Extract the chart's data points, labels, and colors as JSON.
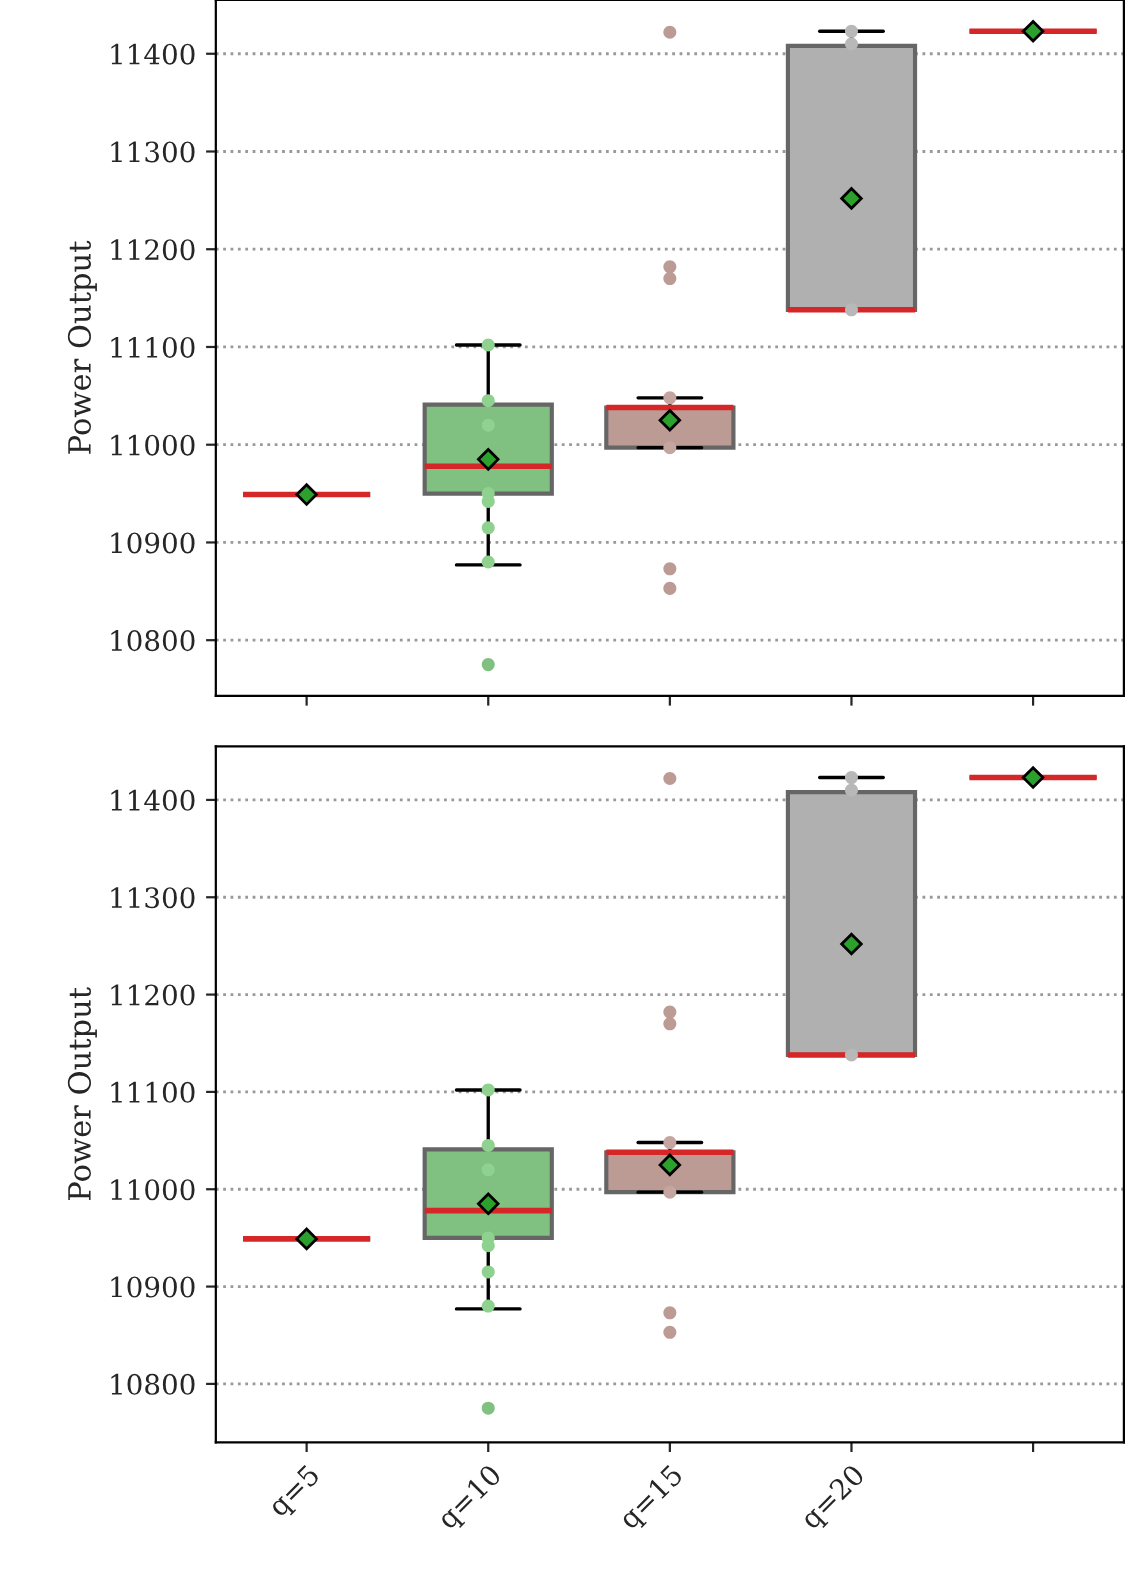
{
  "chart_data": [
    {
      "type": "box",
      "categories": [
        "q=5",
        "q=10",
        "q=15",
        "q=20",
        null
      ],
      "ylabel": "Power Output",
      "ylim": [
        10743,
        11455
      ],
      "yticks": [
        10800,
        10900,
        11000,
        11100,
        11200,
        11300,
        11400
      ],
      "grid": "y",
      "tick_labels": "y",
      "colors": [
        "#1f77b4",
        "#80c080",
        "#bc9b95",
        "#b0b0b0",
        "#d62728"
      ],
      "boxes": [
        {
          "low": 10949,
          "q1": 10949,
          "median": 10949,
          "q3": 10949,
          "high": 10949,
          "mean": 10949
        },
        {
          "low": 10877,
          "q1": 10950,
          "median": 10978,
          "q3": 11041,
          "high": 11102,
          "mean": 10985,
          "outliers": [
            10775
          ]
        },
        {
          "low": 10997,
          "q1": 10997,
          "median": 11038,
          "q3": 11038,
          "high": 11048,
          "mean": 11025,
          "outliers": [
            10853,
            10873,
            11170,
            11182,
            11422
          ]
        },
        {
          "low": 11138,
          "q1": 11138,
          "median": 11138,
          "q3": 11408,
          "high": 11423,
          "mean": 11252
        },
        {
          "low": 11423,
          "q1": 11423,
          "median": 11423,
          "q3": 11423,
          "high": 11423,
          "mean": 11423
        }
      ],
      "series": [
        {
          "type": "scatter",
          "color": "#8fd18f",
          "x": [
            "q=10",
            "q=10",
            "q=10",
            "q=10",
            "q=10",
            "q=10",
            "q=10"
          ],
          "values": [
            11102,
            11045,
            11020,
            10950,
            10942,
            10915,
            10880
          ]
        },
        {
          "type": "scatter",
          "color": "#c5a59f",
          "x": [
            "q=15",
            "q=15"
          ],
          "values": [
            11048,
            10997
          ]
        },
        {
          "type": "scatter",
          "color": "#b8b8b8",
          "x": [
            "q=20",
            "q=20",
            "q=20"
          ],
          "values": [
            11423,
            11410,
            11138
          ]
        }
      ]
    },
    {
      "type": "box",
      "categories": [
        "q=5",
        "q=10",
        "q=15",
        "q=20",
        null
      ],
      "ylabel": "Power Output",
      "ylim": [
        10740,
        11455
      ],
      "yticks": [
        10800,
        10900,
        11000,
        11100,
        11200,
        11300,
        11400
      ],
      "grid": "y",
      "colors": [
        "#1f77b4",
        "#80c080",
        "#bc9b95",
        "#b0b0b0",
        "#d62728"
      ],
      "boxes": [
        {
          "low": 10949,
          "q1": 10949,
          "median": 10949,
          "q3": 10949,
          "high": 10949,
          "mean": 10949
        },
        {
          "low": 10877,
          "q1": 10950,
          "median": 10978,
          "q3": 11041,
          "high": 11102,
          "mean": 10985,
          "outliers": [
            10775
          ]
        },
        {
          "low": 10997,
          "q1": 10997,
          "median": 11038,
          "q3": 11038,
          "high": 11048,
          "mean": 11025,
          "outliers": [
            10853,
            10873,
            11170,
            11182,
            11422
          ]
        },
        {
          "low": 11138,
          "q1": 11138,
          "median": 11138,
          "q3": 11408,
          "high": 11423,
          "mean": 11252
        },
        {
          "low": 11423,
          "q1": 11423,
          "median": 11423,
          "q3": 11423,
          "high": 11423,
          "mean": 11423
        }
      ],
      "series": [
        {
          "type": "scatter",
          "color": "#8fd18f",
          "x": [
            "q=10",
            "q=10",
            "q=10",
            "q=10",
            "q=10",
            "q=10",
            "q=10"
          ],
          "values": [
            11102,
            11045,
            11020,
            10950,
            10942,
            10915,
            10880
          ]
        },
        {
          "type": "scatter",
          "color": "#c5a59f",
          "x": [
            "q=15",
            "q=15"
          ],
          "values": [
            11048,
            10997
          ]
        },
        {
          "type": "scatter",
          "color": "#b8b8b8",
          "x": [
            "q=20",
            "q=20",
            "q=20"
          ],
          "values": [
            11423,
            11410,
            11138
          ]
        }
      ]
    }
  ]
}
